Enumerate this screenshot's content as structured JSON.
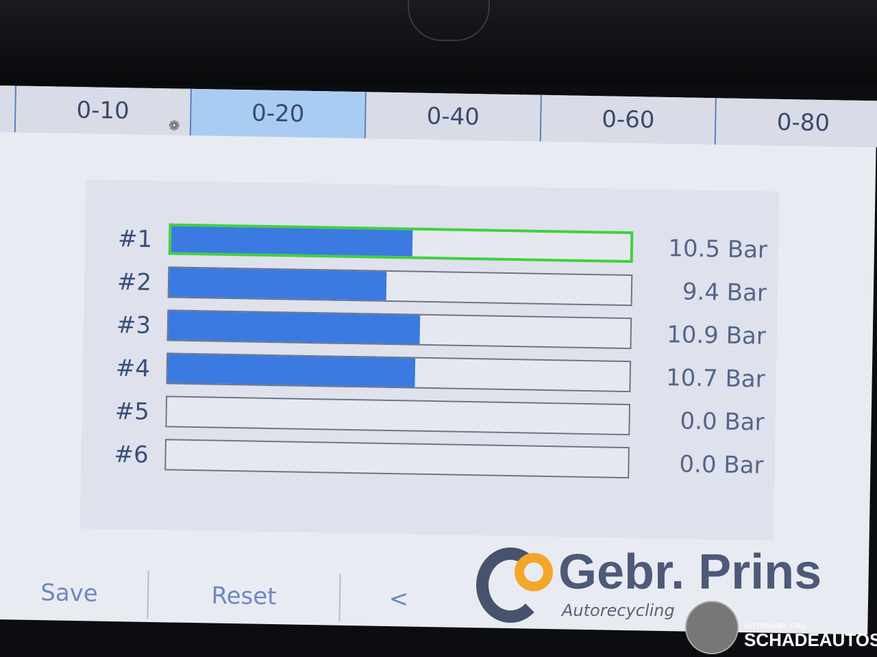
{
  "tabs": [
    {
      "label": "0-10",
      "active": false
    },
    {
      "label": "0-20",
      "active": true
    },
    {
      "label": "0-40",
      "active": false
    },
    {
      "label": "0-60",
      "active": false
    },
    {
      "label": "0-80",
      "active": false
    }
  ],
  "scale_max": 20,
  "cylinders": [
    {
      "label": "#1",
      "value": 10.5,
      "text": "10.5 Bar",
      "selected": true
    },
    {
      "label": "#2",
      "value": 9.4,
      "text": "9.4 Bar",
      "selected": false
    },
    {
      "label": "#3",
      "value": 10.9,
      "text": "10.9 Bar",
      "selected": false
    },
    {
      "label": "#4",
      "value": 10.7,
      "text": "10.7 Bar",
      "selected": false
    },
    {
      "label": "#5",
      "value": 0.0,
      "text": "0.0 Bar",
      "selected": false
    },
    {
      "label": "#6",
      "value": 0.0,
      "text": "0.0 Bar",
      "selected": false
    }
  ],
  "bottom": {
    "save": "Save",
    "reset": "Reset",
    "prev": "<"
  },
  "colors": {
    "fill": "#3b7ae0",
    "selected_border": "#3fd13f",
    "active_tab": "#a9cdf2"
  },
  "watermark": {
    "logo": "Gebr. Prins",
    "sub": "Autorecycling",
    "brand_top": "INTERMOBILITAS",
    "brand": "SCHADEAUTOS.NL"
  }
}
